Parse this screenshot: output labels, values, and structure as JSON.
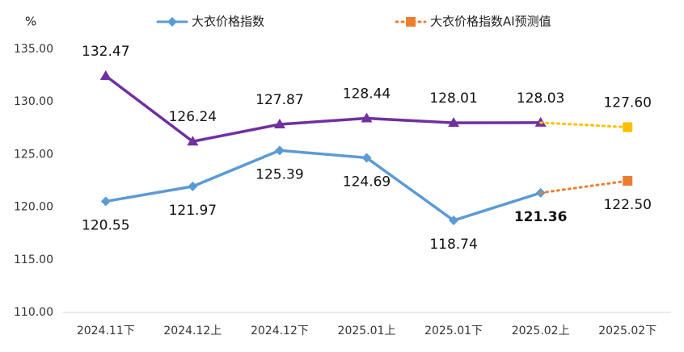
{
  "chart_data": {
    "type": "line",
    "y_label": "%",
    "categories": [
      "2024.11下",
      "2024.12上",
      "2024.12下",
      "2025.01上",
      "2025.01下",
      "2025.02上",
      "2025.02下"
    ],
    "ylim": [
      110,
      135
    ],
    "yticks": [
      {
        "value": 110,
        "label": "110.00"
      },
      {
        "value": 115,
        "label": "115.00"
      },
      {
        "value": 120,
        "label": "120.00"
      },
      {
        "value": 125,
        "label": "125.00"
      },
      {
        "value": 130,
        "label": "130.00"
      },
      {
        "value": 135,
        "label": "135.00"
      }
    ],
    "grid": false,
    "legend": "top",
    "series": [
      {
        "name": "大衣价格指数",
        "color": "#5b9bd5",
        "marker": "diamond",
        "dash": false,
        "label_position": "below",
        "values": [
          120.55,
          121.97,
          125.39,
          124.69,
          118.74,
          121.36,
          null
        ],
        "value_labels": [
          "120.55",
          "121.97",
          "125.39",
          "124.69",
          "118.74",
          "121.36",
          null
        ],
        "bold_labels": [
          5
        ]
      },
      {
        "name": "大衣价格指数AI预测值",
        "color": "#ed7d31",
        "marker": "square",
        "dash": true,
        "label_position": "below",
        "values": [
          null,
          null,
          null,
          null,
          null,
          121.36,
          122.5
        ],
        "value_labels": [
          null,
          null,
          null,
          null,
          null,
          null,
          "122.50"
        ]
      },
      {
        "color": "#7030a0",
        "marker": "triangle",
        "dash": false,
        "label_position": "above",
        "values": [
          132.47,
          126.24,
          127.87,
          128.44,
          128.01,
          128.03,
          null
        ],
        "value_labels": [
          "132.47",
          "126.24",
          "127.87",
          "128.44",
          "128.01",
          "128.03",
          null
        ]
      },
      {
        "color": "#ffc000",
        "marker": "square",
        "dash": true,
        "label_position": "above",
        "values": [
          null,
          null,
          null,
          null,
          null,
          128.03,
          127.6
        ],
        "value_labels": [
          null,
          null,
          null,
          null,
          null,
          null,
          "127.60"
        ]
      }
    ]
  }
}
